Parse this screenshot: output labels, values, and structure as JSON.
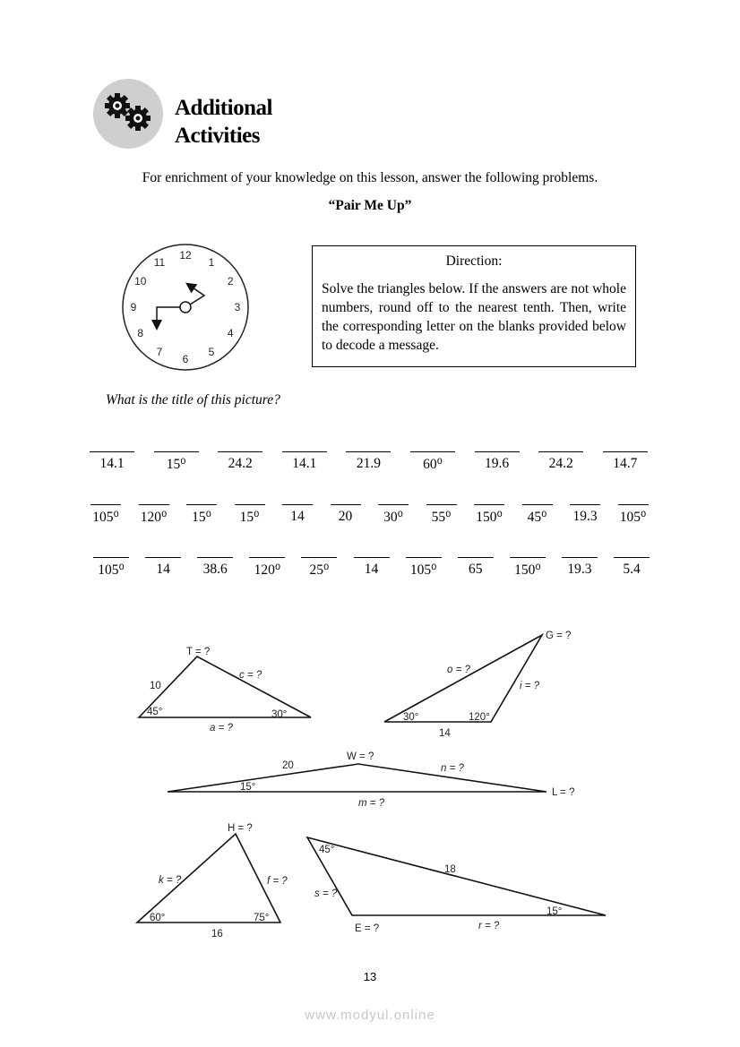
{
  "header": {
    "title_line1": "Additional",
    "title_line2": "Activities",
    "icon": "gears-icon"
  },
  "intro": "For enrichment of your knowledge on this lesson, answer the following problems.",
  "activity_title": "“Pair Me Up”",
  "clock": {
    "numbers": [
      "12",
      "1",
      "2",
      "3",
      "4",
      "5",
      "6",
      "7",
      "8",
      "9",
      "10",
      "11"
    ]
  },
  "direction": {
    "heading": "Direction:",
    "text": "Solve the triangles below.  If the answers are not whole numbers, round off to the nearest tenth. Then, write the corresponding letter on the blanks provided below to decode a message."
  },
  "question": "What is the title of this picture?",
  "blanks": {
    "row1": [
      "14.1",
      "15⁰",
      "24.2",
      "14.1",
      "21.9",
      "60⁰",
      "19.6",
      "24.2",
      "14.7"
    ],
    "row2": [
      "105⁰",
      "120⁰",
      "15⁰",
      "15⁰",
      "14",
      "20",
      "30⁰",
      "55⁰",
      "150⁰",
      "45⁰",
      "19.3",
      "105⁰"
    ],
    "row3": [
      "105⁰",
      "14",
      "38.6",
      "120⁰",
      "25⁰",
      "14",
      "105⁰",
      "65",
      "150⁰",
      "19.3",
      "5.4"
    ]
  },
  "triangles": {
    "t1": {
      "vertex": "T = ?",
      "side_left": "10",
      "side_right": "c = ?",
      "angle_left": "45°",
      "angle_right": "30°",
      "base": "a = ?"
    },
    "t2": {
      "vertex": "G = ?",
      "side_left": "o = ?",
      "side_right": "i = ?",
      "angle_left": "30°",
      "angle_right": "120°",
      "base": "14"
    },
    "t3": {
      "vertex": "W = ?",
      "side_left": "20",
      "side_right": "n = ?",
      "angle_left": "15°",
      "vertex_right": "L = ?",
      "base": "m = ?"
    },
    "t4": {
      "vertex": "H = ?",
      "side_left": "k = ?",
      "side_right": "f = ?",
      "angle_left": "60°",
      "angle_right": "75°",
      "base": "16"
    },
    "t5": {
      "angle_top": "45°",
      "side_top": "18",
      "side_left": "s = ?",
      "angle_right": "15°",
      "vertex": "E = ?",
      "base": "r = ?"
    }
  },
  "page_number": "13",
  "watermark": "www.modyul.online"
}
